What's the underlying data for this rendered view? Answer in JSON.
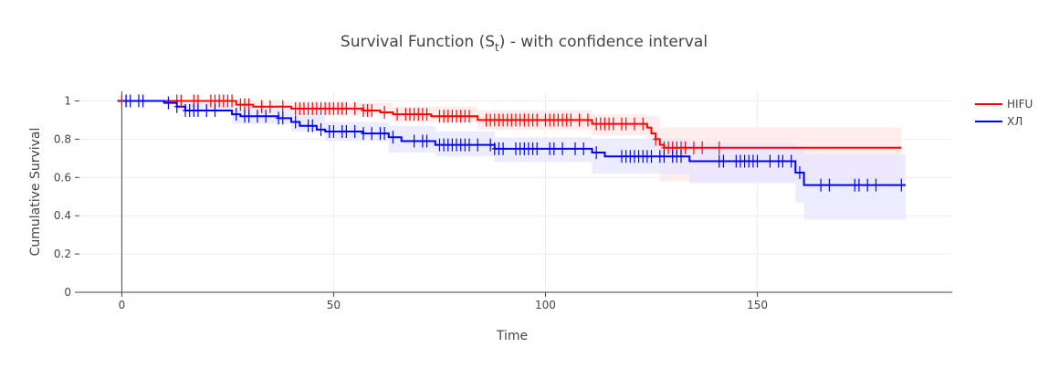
{
  "chart_data": {
    "type": "line",
    "title": "Survival Function (S",
    "title_sub": "t",
    "title_rest": ") - with confidence interval",
    "xlabel": "Time",
    "ylabel": "Cumulative Survival",
    "xlim": [
      -10,
      196
    ],
    "ylim": [
      0,
      1.05
    ],
    "x_ticks": [
      0,
      50,
      100,
      150
    ],
    "x_tick_labels": [
      "0",
      "50",
      "100",
      "150"
    ],
    "y_ticks": [
      0,
      0.2,
      0.4,
      0.6,
      0.8,
      1
    ],
    "y_tick_labels": [
      "0",
      "0.2",
      "0.4",
      "0.6",
      "0.8",
      "1"
    ],
    "grid": true,
    "legend_position": "top-right",
    "series": [
      {
        "name": "HIFU",
        "color": "#ff0000",
        "band_color": "#ffe6e6",
        "steps": [
          {
            "x": -1,
            "y": 1.0
          },
          {
            "x": 27,
            "y": 0.98
          },
          {
            "x": 31,
            "y": 0.97
          },
          {
            "x": 40,
            "y": 0.96
          },
          {
            "x": 57,
            "y": 0.95
          },
          {
            "x": 61,
            "y": 0.94
          },
          {
            "x": 64,
            "y": 0.93
          },
          {
            "x": 73,
            "y": 0.92
          },
          {
            "x": 84,
            "y": 0.9
          },
          {
            "x": 111,
            "y": 0.88
          },
          {
            "x": 124,
            "y": 0.86
          },
          {
            "x": 125,
            "y": 0.83
          },
          {
            "x": 126,
            "y": 0.8
          },
          {
            "x": 127,
            "y": 0.77
          },
          {
            "x": 128,
            "y": 0.755
          }
        ],
        "end_x": 184,
        "ci": [
          {
            "x": -1,
            "lo": 1.0,
            "hi": 1.0
          },
          {
            "x": 27,
            "lo": 0.96,
            "hi": 0.995
          },
          {
            "x": 40,
            "lo": 0.93,
            "hi": 0.99
          },
          {
            "x": 64,
            "lo": 0.89,
            "hi": 0.97
          },
          {
            "x": 84,
            "lo": 0.85,
            "hi": 0.95
          },
          {
            "x": 111,
            "lo": 0.82,
            "hi": 0.93
          },
          {
            "x": 124,
            "lo": 0.76,
            "hi": 0.92
          },
          {
            "x": 127,
            "lo": 0.58,
            "hi": 0.86
          }
        ],
        "censored": [
          0,
          1,
          13,
          14,
          17,
          18,
          21,
          22,
          23,
          24,
          25,
          26,
          28,
          29,
          30,
          33,
          35,
          38,
          41,
          42,
          43,
          44,
          45,
          46,
          47,
          48,
          49,
          50,
          51,
          52,
          53,
          55,
          57,
          58,
          59,
          62,
          65,
          67,
          68,
          69,
          70,
          71,
          72,
          75,
          76,
          77,
          78,
          79,
          80,
          81,
          82,
          86,
          87,
          88,
          89,
          90,
          91,
          92,
          93,
          94,
          95,
          96,
          97,
          98,
          100,
          101,
          102,
          103,
          104,
          105,
          106,
          108,
          110,
          112,
          113,
          114,
          115,
          116,
          118,
          119,
          121,
          123,
          126,
          128,
          129,
          130,
          131,
          132,
          133,
          135,
          137,
          141
        ]
      },
      {
        "name": "ХЛ",
        "color": "#0000ff",
        "band_color": "#e6e6ff",
        "steps": [
          {
            "x": -1,
            "y": 1.0
          },
          {
            "x": 10,
            "y": 0.99
          },
          {
            "x": 13,
            "y": 0.97
          },
          {
            "x": 15,
            "y": 0.95
          },
          {
            "x": 26,
            "y": 0.93
          },
          {
            "x": 28,
            "y": 0.92
          },
          {
            "x": 37,
            "y": 0.91
          },
          {
            "x": 40,
            "y": 0.89
          },
          {
            "x": 42,
            "y": 0.87
          },
          {
            "x": 46,
            "y": 0.85
          },
          {
            "x": 48,
            "y": 0.84
          },
          {
            "x": 57,
            "y": 0.83
          },
          {
            "x": 63,
            "y": 0.81
          },
          {
            "x": 66,
            "y": 0.79
          },
          {
            "x": 74,
            "y": 0.77
          },
          {
            "x": 88,
            "y": 0.75
          },
          {
            "x": 111,
            "y": 0.73
          },
          {
            "x": 114,
            "y": 0.71
          },
          {
            "x": 134,
            "y": 0.685
          },
          {
            "x": 159,
            "y": 0.625
          },
          {
            "x": 161,
            "y": 0.56
          }
        ],
        "end_x": 185,
        "ci": [
          {
            "x": -1,
            "lo": 1.0,
            "hi": 1.0
          },
          {
            "x": 13,
            "lo": 0.95,
            "hi": 0.99
          },
          {
            "x": 26,
            "lo": 0.88,
            "hi": 0.96
          },
          {
            "x": 40,
            "lo": 0.84,
            "hi": 0.94
          },
          {
            "x": 48,
            "lo": 0.79,
            "hi": 0.89
          },
          {
            "x": 63,
            "lo": 0.73,
            "hi": 0.87
          },
          {
            "x": 74,
            "lo": 0.71,
            "hi": 0.84
          },
          {
            "x": 88,
            "lo": 0.68,
            "hi": 0.81
          },
          {
            "x": 111,
            "lo": 0.62,
            "hi": 0.8
          },
          {
            "x": 134,
            "lo": 0.57,
            "hi": 0.78
          },
          {
            "x": 159,
            "lo": 0.47,
            "hi": 0.76
          },
          {
            "x": 161,
            "lo": 0.38,
            "hi": 0.72
          }
        ],
        "censored": [
          1,
          2,
          4,
          5,
          11,
          13,
          15,
          16,
          17,
          18,
          20,
          22,
          27,
          29,
          30,
          32,
          34,
          37,
          38,
          41,
          44,
          45,
          47,
          49,
          50,
          52,
          53,
          55,
          57,
          59,
          61,
          62,
          64,
          69,
          71,
          72,
          75,
          76,
          77,
          78,
          79,
          80,
          81,
          82,
          84,
          87,
          88,
          89,
          90,
          93,
          94,
          95,
          96,
          97,
          98,
          101,
          102,
          104,
          107,
          109,
          112,
          118,
          119,
          120,
          121,
          122,
          123,
          124,
          125,
          127,
          128,
          130,
          131,
          132,
          141,
          142,
          145,
          146,
          147,
          148,
          149,
          150,
          153,
          155,
          156,
          158,
          160,
          165,
          167,
          173,
          174,
          176,
          178,
          184
        ]
      }
    ]
  }
}
